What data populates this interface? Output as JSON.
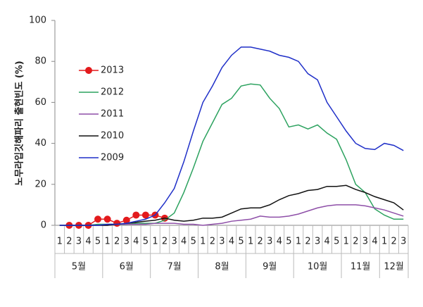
{
  "chart_data": {
    "type": "line",
    "ylabel": "노무라입깃해파리 출현빈도 (%)",
    "categories": [
      "1",
      "2",
      "3",
      "4",
      "5",
      "1",
      "2",
      "3",
      "4",
      "5",
      "1",
      "2",
      "3",
      "4",
      "5",
      "1",
      "2",
      "3",
      "4",
      "5",
      "1",
      "2",
      "3",
      "4",
      "5",
      "1",
      "2",
      "3",
      "4",
      "5",
      "1",
      "2",
      "3",
      "4",
      "1",
      "2",
      "3"
    ],
    "months": [
      {
        "label": "5월",
        "weeks": 5
      },
      {
        "label": "6월",
        "weeks": 5
      },
      {
        "label": "7월",
        "weeks": 5
      },
      {
        "label": "8월",
        "weeks": 5
      },
      {
        "label": "9월",
        "weeks": 5
      },
      {
        "label": "10월",
        "weeks": 5
      },
      {
        "label": "11월",
        "weeks": 4
      },
      {
        "label": "12월",
        "weeks": 3
      }
    ],
    "ylim": [
      0,
      100
    ],
    "yticks": [
      0,
      20,
      40,
      60,
      80,
      100
    ],
    "series": [
      {
        "name": "2013",
        "color": "#e31a1c",
        "marker": true,
        "values": [
          null,
          0,
          0,
          0,
          3,
          3,
          1,
          2.5,
          5,
          5,
          5,
          3.5,
          null,
          null,
          null,
          null,
          null,
          null,
          null,
          null,
          null,
          null,
          null,
          null,
          null,
          null,
          null,
          null,
          null,
          null,
          null,
          null,
          null,
          null,
          null,
          null,
          null
        ]
      },
      {
        "name": "2012",
        "color": "#2ca25f",
        "marker": false,
        "values": [
          0,
          0,
          0,
          0,
          0.5,
          0.5,
          0.5,
          0.5,
          1,
          1,
          1,
          2.5,
          6,
          16,
          28,
          41,
          50,
          59,
          62,
          68,
          69,
          68.5,
          62,
          57,
          48,
          49,
          47,
          49,
          45,
          42,
          32,
          20,
          16,
          8,
          5,
          3,
          3
        ]
      },
      {
        "name": "2011",
        "color": "#8e4fa8",
        "marker": false,
        "values": [
          0,
          0,
          0,
          0,
          0,
          0,
          0.5,
          0.5,
          0.5,
          0.5,
          1,
          1,
          1,
          0.5,
          0.5,
          0,
          0.5,
          1,
          2,
          2.5,
          3,
          4.5,
          4,
          4,
          4.5,
          5.5,
          7,
          8.5,
          9.5,
          10,
          10,
          10,
          9.5,
          8.5,
          7.5,
          6,
          4.5
        ]
      },
      {
        "name": "2010",
        "color": "#111111",
        "marker": false,
        "values": [
          0,
          0,
          0,
          0,
          0,
          0,
          0.5,
          1,
          1.5,
          2,
          2.5,
          3.5,
          2.5,
          2,
          2.5,
          3.5,
          3.5,
          4,
          6,
          8,
          8.5,
          8.5,
          10,
          12.5,
          14.5,
          15.5,
          17,
          17.5,
          19,
          19,
          19.5,
          17.5,
          16,
          14,
          12.5,
          11,
          7.5
        ]
      },
      {
        "name": "2009",
        "color": "#1f2fc8",
        "marker": false,
        "values": [
          0,
          0,
          0,
          0,
          0,
          0.5,
          0.5,
          1,
          2,
          3,
          5,
          11,
          18,
          31,
          46,
          60,
          68,
          77,
          83,
          87,
          87,
          86,
          85,
          83,
          82,
          80,
          74,
          71,
          60,
          53,
          46,
          40,
          37.5,
          37,
          40,
          39,
          36.5
        ]
      }
    ]
  }
}
